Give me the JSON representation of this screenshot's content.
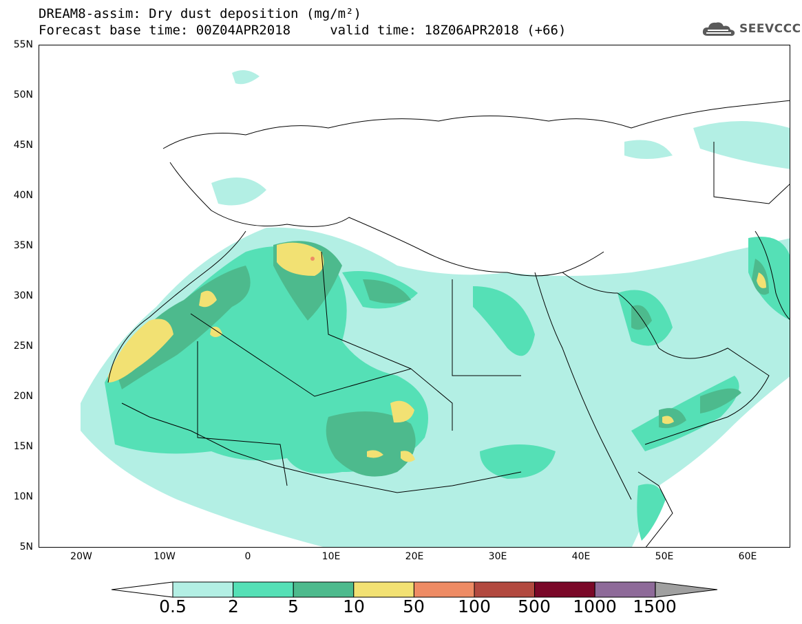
{
  "title": {
    "line1": "DREAM8-assim: Dry dust deposition (mg/m²)",
    "line2": "Forecast base time: 00Z04APR2018     valid time: 18Z06APR2018 (+66)"
  },
  "logo": {
    "text": "SEEVCCC",
    "icon": "cloud-icon"
  },
  "map": {
    "lon_range": [
      -25,
      65
    ],
    "lat_range": [
      5,
      55
    ],
    "lat_ticks": [
      "55N",
      "50N",
      "45N",
      "40N",
      "35N",
      "30N",
      "25N",
      "20N",
      "15N",
      "10N",
      "5N"
    ],
    "lon_ticks": [
      "20W",
      "10W",
      "0",
      "10E",
      "20E",
      "30E",
      "40E",
      "50E",
      "60E"
    ],
    "colors": {
      "c05": "#b3efe4",
      "c2": "#55e0b6",
      "c5": "#4dba8d",
      "c10": "#f2e173",
      "c50": "#ee8b64",
      "border": "#000000"
    }
  },
  "colorbar": {
    "labels": [
      "0.5",
      "2",
      "5",
      "10",
      "50",
      "100",
      "500",
      "1000",
      "1500"
    ],
    "colors": [
      "#b3efe4",
      "#55e0b6",
      "#4dba8d",
      "#f2e173",
      "#ee8b64",
      "#b2493f",
      "#7a0828",
      "#8e6a99"
    ],
    "low_end_color": "#ffffff",
    "high_end_color": "#a0a0a0"
  }
}
